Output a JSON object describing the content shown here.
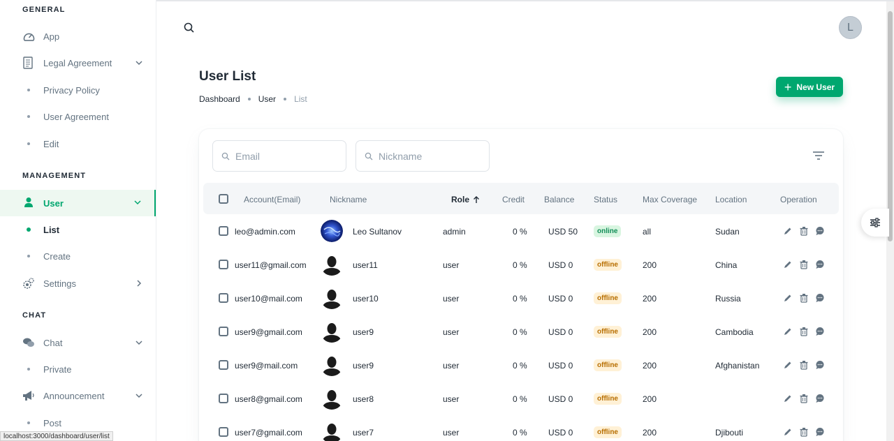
{
  "sidebar": {
    "sections": {
      "general": "GENERAL",
      "management": "MANAGEMENT",
      "chat": "CHAT"
    },
    "items": {
      "app": "App",
      "legal": "Legal Agreement",
      "privacy": "Privacy Policy",
      "user_agreement": "User Agreement",
      "edit": "Edit",
      "user": "User",
      "list": "List",
      "create": "Create",
      "settings": "Settings",
      "chat": "Chat",
      "private": "Private",
      "announcement": "Announcement",
      "post": "Post"
    }
  },
  "header": {
    "avatar_letter": "L"
  },
  "page": {
    "title": "User List",
    "breadcrumb": [
      "Dashboard",
      "User",
      "List"
    ],
    "new_user_label": "New User"
  },
  "filters": {
    "email_placeholder": "Email",
    "nickname_placeholder": "Nickname"
  },
  "table": {
    "columns": {
      "account": "Account(Email)",
      "nickname": "Nickname",
      "role": "Role",
      "credit": "Credit",
      "balance": "Balance",
      "status": "Status",
      "max_coverage": "Max Coverage",
      "location": "Location",
      "operation": "Operation"
    },
    "rows": [
      {
        "email": "leo@admin.com",
        "nickname": "Leo Sultanov",
        "role": "admin",
        "credit": "0 %",
        "balance": "USD 50",
        "status": "online",
        "max_coverage": "all",
        "location": "Sudan",
        "avatar": "photo"
      },
      {
        "email": "user11@gmail.com",
        "nickname": "user11",
        "role": "user",
        "credit": "0 %",
        "balance": "USD 0",
        "status": "offline",
        "max_coverage": "200",
        "location": "China",
        "avatar": "silhouette"
      },
      {
        "email": "user10@mail.com",
        "nickname": "user10",
        "role": "user",
        "credit": "0 %",
        "balance": "USD 0",
        "status": "offline",
        "max_coverage": "200",
        "location": "Russia",
        "avatar": "silhouette"
      },
      {
        "email": "user9@gmail.com",
        "nickname": "user9",
        "role": "user",
        "credit": "0 %",
        "balance": "USD 0",
        "status": "offline",
        "max_coverage": "200",
        "location": "Cambodia",
        "avatar": "silhouette"
      },
      {
        "email": "user9@mail.com",
        "nickname": "user9",
        "role": "user",
        "credit": "0 %",
        "balance": "USD 0",
        "status": "offline",
        "max_coverage": "200",
        "location": "Afghanistan",
        "avatar": "silhouette"
      },
      {
        "email": "user8@gmail.com",
        "nickname": "user8",
        "role": "user",
        "credit": "0 %",
        "balance": "USD 0",
        "status": "offline",
        "max_coverage": "200",
        "location": "",
        "avatar": "silhouette"
      },
      {
        "email": "user7@gmail.com",
        "nickname": "user7",
        "role": "user",
        "credit": "0 %",
        "balance": "USD 0",
        "status": "offline",
        "max_coverage": "200",
        "location": "Djibouti",
        "avatar": "silhouette"
      }
    ]
  },
  "browser": {
    "status_url": "localhost:3000/dashboard/user/list"
  },
  "colors": {
    "accent": "#00a76f",
    "online_bg": "#d8f5e0",
    "offline_bg": "#fff1d6"
  }
}
